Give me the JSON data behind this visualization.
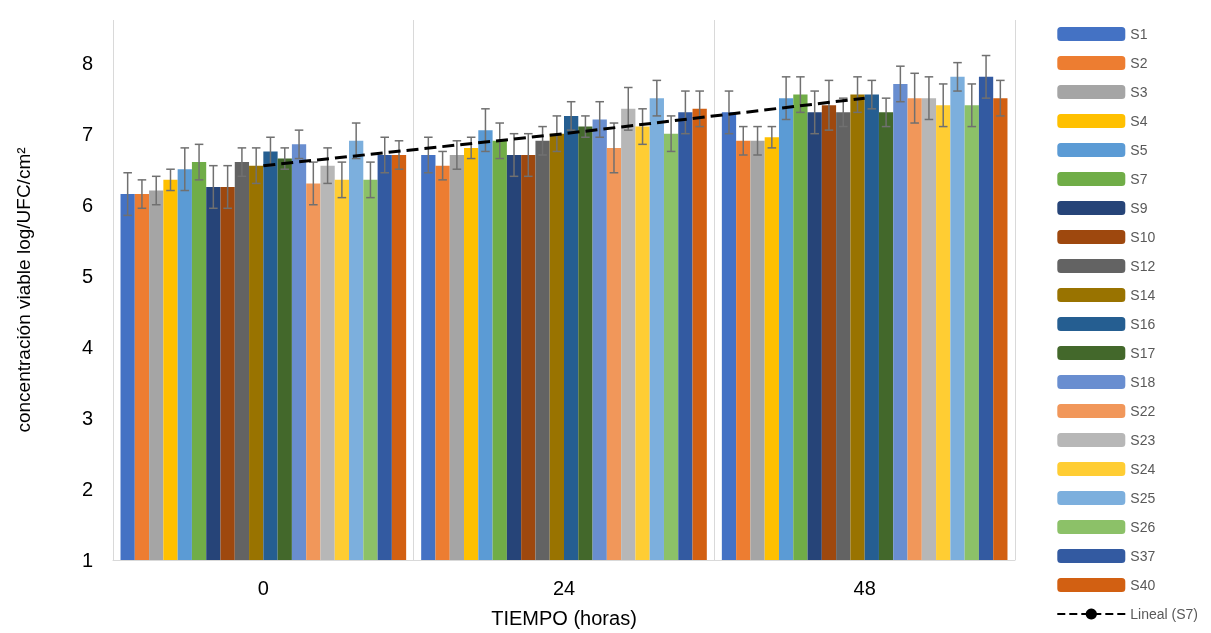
{
  "chart_data": {
    "type": "bar",
    "xlabel": "TIEMPO (horas)",
    "ylabel": "concentración viable log/UFC/cm²",
    "categories": [
      "0",
      "24",
      "48"
    ],
    "ylim": [
      1,
      8.6
    ],
    "yticks": [
      1,
      2,
      3,
      4,
      5,
      6,
      7,
      8
    ],
    "grid": "x",
    "legend": "right",
    "series": [
      {
        "name": "S1",
        "color": "#4472c4",
        "values": [
          6.15,
          6.7,
          7.3
        ],
        "errors": [
          0.3,
          0.25,
          0.3
        ]
      },
      {
        "name": "S2",
        "color": "#ed7d31",
        "values": [
          6.15,
          6.55,
          6.9
        ],
        "errors": [
          0.2,
          0.2,
          0.2
        ]
      },
      {
        "name": "S3",
        "color": "#a5a5a5",
        "values": [
          6.2,
          6.7,
          6.9
        ],
        "errors": [
          0.2,
          0.2,
          0.2
        ]
      },
      {
        "name": "S4",
        "color": "#ffc000",
        "values": [
          6.35,
          6.8,
          6.95
        ],
        "errors": [
          0.15,
          0.15,
          0.15
        ]
      },
      {
        "name": "S5",
        "color": "#5b9bd5",
        "values": [
          6.5,
          7.05,
          7.5
        ],
        "errors": [
          0.3,
          0.3,
          0.3
        ]
      },
      {
        "name": "S7",
        "color": "#70ad47",
        "values": [
          6.6,
          6.9,
          7.55
        ],
        "errors": [
          0.25,
          0.25,
          0.25
        ]
      },
      {
        "name": "S9",
        "color": "#264478",
        "values": [
          6.25,
          6.7,
          7.3
        ],
        "errors": [
          0.3,
          0.3,
          0.3
        ]
      },
      {
        "name": "S10",
        "color": "#9e480e",
        "values": [
          6.25,
          6.7,
          7.4
        ],
        "errors": [
          0.3,
          0.3,
          0.35
        ]
      },
      {
        "name": "S12",
        "color": "#636363",
        "values": [
          6.6,
          6.9,
          7.3
        ],
        "errors": [
          0.2,
          0.2,
          0.2
        ]
      },
      {
        "name": "S14",
        "color": "#997300",
        "values": [
          6.55,
          7.0,
          7.55
        ],
        "errors": [
          0.25,
          0.25,
          0.25
        ]
      },
      {
        "name": "S16",
        "color": "#255e91",
        "values": [
          6.75,
          7.25,
          7.55
        ],
        "errors": [
          0.2,
          0.2,
          0.2
        ]
      },
      {
        "name": "S17",
        "color": "#43682b",
        "values": [
          6.65,
          7.1,
          7.3
        ],
        "errors": [
          0.15,
          0.15,
          0.2
        ]
      },
      {
        "name": "S18",
        "color": "#698ed0",
        "values": [
          6.85,
          7.2,
          7.7
        ],
        "errors": [
          0.2,
          0.25,
          0.25
        ]
      },
      {
        "name": "S22",
        "color": "#f1975a",
        "values": [
          6.3,
          6.8,
          7.5
        ],
        "errors": [
          0.3,
          0.35,
          0.35
        ]
      },
      {
        "name": "S23",
        "color": "#b7b7b7",
        "values": [
          6.55,
          7.35,
          7.5
        ],
        "errors": [
          0.25,
          0.3,
          0.3
        ]
      },
      {
        "name": "S24",
        "color": "#ffcd33",
        "values": [
          6.35,
          7.1,
          7.4
        ],
        "errors": [
          0.25,
          0.25,
          0.3
        ]
      },
      {
        "name": "S25",
        "color": "#7cafdd",
        "values": [
          6.9,
          7.5,
          7.8
        ],
        "errors": [
          0.25,
          0.25,
          0.2
        ]
      },
      {
        "name": "S26",
        "color": "#8cc168",
        "values": [
          6.35,
          7.0,
          7.4
        ],
        "errors": [
          0.25,
          0.25,
          0.3
        ]
      },
      {
        "name": "S37",
        "color": "#335aa1",
        "values": [
          6.7,
          7.3,
          7.8
        ],
        "errors": [
          0.25,
          0.3,
          0.3
        ]
      },
      {
        "name": "S40",
        "color": "#d26012",
        "values": [
          6.7,
          7.35,
          7.5
        ],
        "errors": [
          0.2,
          0.25,
          0.25
        ]
      },
      {
        "name": "Lineal (S7)",
        "type": "line",
        "color": "#000000",
        "values": [
          6.55,
          7.0,
          7.5
        ],
        "line_style": "dashed",
        "marker": "none"
      }
    ]
  }
}
